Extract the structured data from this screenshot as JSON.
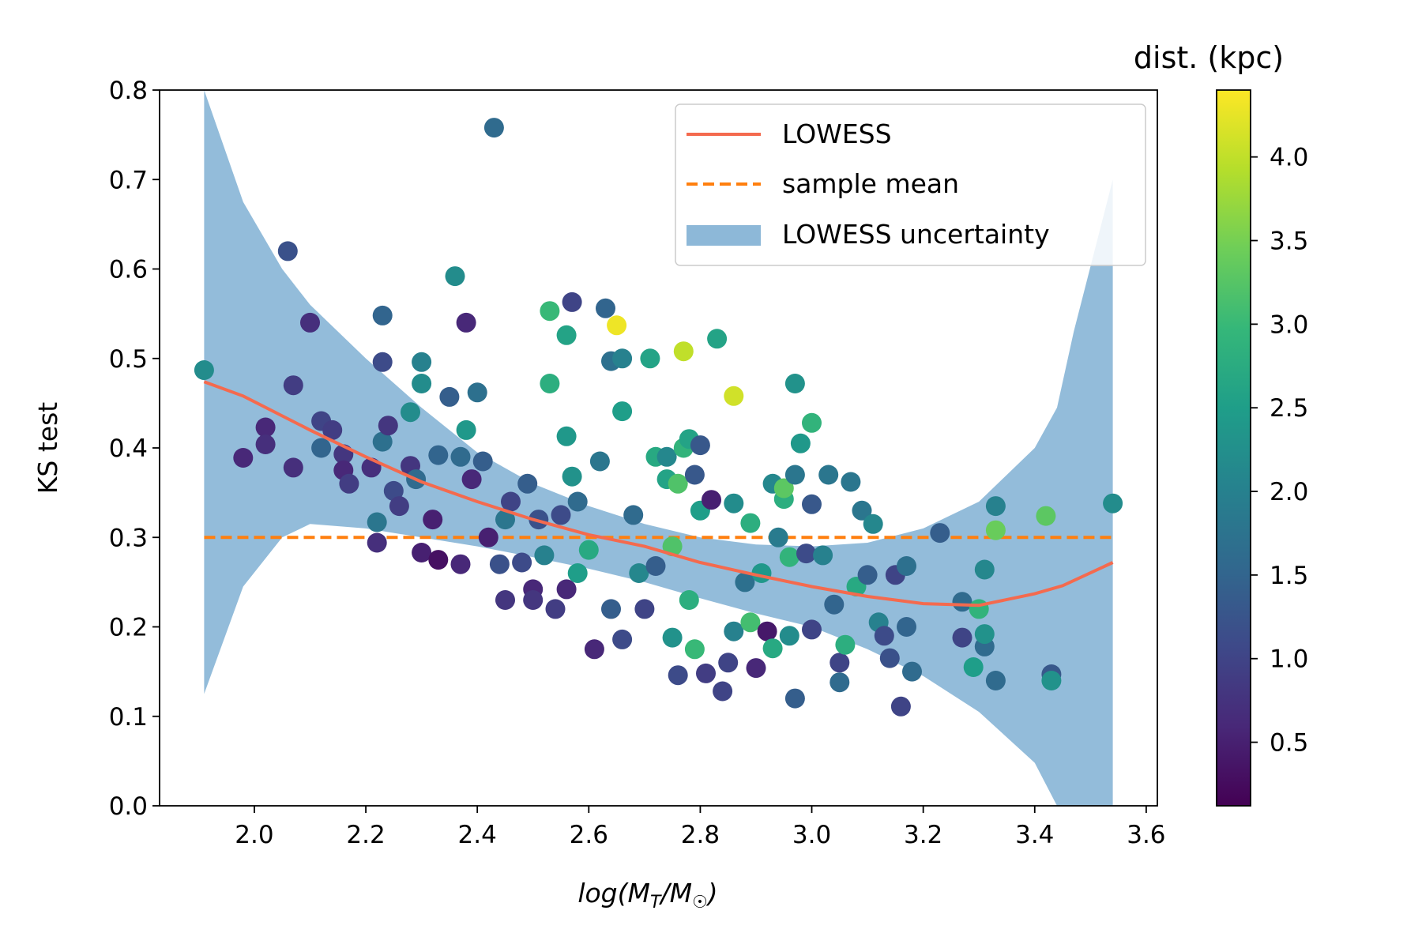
{
  "chart_data": {
    "type": "scatter",
    "title": "",
    "xlabel": "log(M_T/M_☉)",
    "xlabel_parts": {
      "base": "log(",
      "m1": "M",
      "sub1": "T",
      "slash": "/",
      "m2": "M",
      "sub2": "☉",
      "close": ")"
    },
    "ylabel": "KS test",
    "xlim": [
      1.83,
      3.62
    ],
    "ylim": [
      0.0,
      0.8
    ],
    "xticks": [
      2.0,
      2.2,
      2.4,
      2.6,
      2.8,
      3.0,
      3.2,
      3.4,
      3.6
    ],
    "xtick_labels": [
      "2.0",
      "2.2",
      "2.4",
      "2.6",
      "2.8",
      "3.0",
      "3.2",
      "3.4",
      "3.6"
    ],
    "yticks": [
      0.0,
      0.1,
      0.2,
      0.3,
      0.4,
      0.5,
      0.6,
      0.7,
      0.8
    ],
    "ytick_labels": [
      "0.0",
      "0.1",
      "0.2",
      "0.3",
      "0.4",
      "0.5",
      "0.6",
      "0.7",
      "0.8"
    ],
    "colorbar": {
      "label": "dist. (kpc)",
      "range": [
        0.12,
        4.4
      ],
      "ticks": [
        0.5,
        1.0,
        1.5,
        2.0,
        2.5,
        3.0,
        3.5,
        4.0
      ],
      "tick_labels": [
        "0.5",
        "1.0",
        "1.5",
        "2.0",
        "2.5",
        "3.0",
        "3.5",
        "4.0"
      ],
      "colormap": "viridis",
      "stops": [
        "#440154",
        "#482878",
        "#3e4989",
        "#31688e",
        "#26828e",
        "#1f9e89",
        "#35b779",
        "#6ece58",
        "#b5de2b",
        "#fde725"
      ]
    },
    "legend": {
      "position": "top-right",
      "items": [
        {
          "label": "LOWESS",
          "kind": "line",
          "color": "#f46a4e"
        },
        {
          "label": "sample mean",
          "kind": "dashed",
          "color": "#ff7f0e"
        },
        {
          "label": "LOWESS uncertainty",
          "kind": "patch",
          "color": "#8db8d8"
        }
      ]
    },
    "sample_mean": {
      "value": 0.3,
      "x_range": [
        1.91,
        3.54
      ],
      "color": "#ff7f0e"
    },
    "lowess": {
      "color": "#f46a4e",
      "x": [
        1.91,
        1.98,
        2.1,
        2.2,
        2.3,
        2.4,
        2.5,
        2.6,
        2.7,
        2.8,
        2.9,
        3.0,
        3.1,
        3.2,
        3.3,
        3.4,
        3.45,
        3.54
      ],
      "y": [
        0.474,
        0.458,
        0.42,
        0.39,
        0.362,
        0.34,
        0.32,
        0.303,
        0.29,
        0.272,
        0.258,
        0.245,
        0.234,
        0.226,
        0.224,
        0.237,
        0.246,
        0.272
      ]
    },
    "uncertainty_band": {
      "color": "#8db8d8",
      "x": [
        1.91,
        1.98,
        2.05,
        2.1,
        2.2,
        2.3,
        2.4,
        2.5,
        2.6,
        2.7,
        2.8,
        2.9,
        3.0,
        3.1,
        3.2,
        3.3,
        3.4,
        3.44,
        3.47,
        3.54
      ],
      "upper": [
        0.8,
        0.675,
        0.6,
        0.56,
        0.5,
        0.445,
        0.395,
        0.36,
        0.335,
        0.315,
        0.3,
        0.292,
        0.29,
        0.294,
        0.31,
        0.34,
        0.4,
        0.445,
        0.53,
        0.7
      ],
      "lower": [
        0.125,
        0.245,
        0.3,
        0.315,
        0.31,
        0.3,
        0.29,
        0.278,
        0.265,
        0.25,
        0.232,
        0.215,
        0.2,
        0.175,
        0.145,
        0.105,
        0.048,
        0.0,
        0.0,
        0.0
      ]
    },
    "points": [
      [
        1.91,
        0.487,
        2.2
      ],
      [
        1.98,
        0.389,
        0.6
      ],
      [
        2.02,
        0.423,
        0.6
      ],
      [
        2.02,
        0.404,
        0.7
      ],
      [
        2.06,
        0.62,
        1.2
      ],
      [
        2.07,
        0.47,
        0.9
      ],
      [
        2.07,
        0.378,
        0.7
      ],
      [
        2.1,
        0.54,
        0.7
      ],
      [
        2.12,
        0.43,
        1.0
      ],
      [
        2.12,
        0.4,
        1.5
      ],
      [
        2.14,
        0.42,
        0.9
      ],
      [
        2.16,
        0.393,
        0.8
      ],
      [
        2.16,
        0.375,
        0.6
      ],
      [
        2.17,
        0.36,
        0.9
      ],
      [
        2.21,
        0.378,
        0.7
      ],
      [
        2.22,
        0.317,
        1.8
      ],
      [
        2.22,
        0.294,
        0.7
      ],
      [
        2.23,
        0.548,
        1.5
      ],
      [
        2.23,
        0.496,
        1.1
      ],
      [
        2.23,
        0.407,
        1.7
      ],
      [
        2.24,
        0.425,
        0.8
      ],
      [
        2.25,
        0.352,
        1.1
      ],
      [
        2.26,
        0.335,
        0.9
      ],
      [
        2.28,
        0.44,
        2.2
      ],
      [
        2.28,
        0.38,
        0.8
      ],
      [
        2.29,
        0.365,
        1.6
      ],
      [
        2.3,
        0.472,
        2.2
      ],
      [
        2.3,
        0.496,
        2.0
      ],
      [
        2.3,
        0.283,
        0.5
      ],
      [
        2.32,
        0.32,
        0.5
      ],
      [
        2.33,
        0.275,
        0.3
      ],
      [
        2.33,
        0.392,
        1.5
      ],
      [
        2.35,
        0.457,
        1.4
      ],
      [
        2.36,
        0.592,
        2.2
      ],
      [
        2.37,
        0.39,
        1.6
      ],
      [
        2.37,
        0.27,
        0.6
      ],
      [
        2.38,
        0.42,
        2.4
      ],
      [
        2.38,
        0.54,
        0.6
      ],
      [
        2.39,
        0.365,
        0.6
      ],
      [
        2.4,
        0.462,
        1.7
      ],
      [
        2.41,
        0.385,
        1.4
      ],
      [
        2.42,
        0.3,
        0.5
      ],
      [
        2.43,
        0.758,
        1.6
      ],
      [
        2.44,
        0.27,
        1.2
      ],
      [
        2.45,
        0.23,
        0.8
      ],
      [
        2.45,
        0.32,
        1.8
      ],
      [
        2.46,
        0.34,
        1.0
      ],
      [
        2.48,
        0.272,
        1.1
      ],
      [
        2.49,
        0.36,
        1.4
      ],
      [
        2.5,
        0.242,
        0.6
      ],
      [
        2.5,
        0.23,
        0.8
      ],
      [
        2.51,
        0.32,
        1.2
      ],
      [
        2.52,
        0.28,
        2.0
      ],
      [
        2.53,
        0.472,
        2.8
      ],
      [
        2.53,
        0.553,
        3.0
      ],
      [
        2.54,
        0.22,
        0.9
      ],
      [
        2.55,
        0.325,
        1.1
      ],
      [
        2.56,
        0.413,
        2.4
      ],
      [
        2.56,
        0.526,
        2.6
      ],
      [
        2.56,
        0.242,
        0.6
      ],
      [
        2.57,
        0.563,
        1.0
      ],
      [
        2.57,
        0.368,
        2.3
      ],
      [
        2.58,
        0.26,
        2.5
      ],
      [
        2.58,
        0.34,
        1.6
      ],
      [
        2.6,
        0.286,
        2.7
      ],
      [
        2.61,
        0.175,
        0.6
      ],
      [
        2.62,
        0.385,
        1.8
      ],
      [
        2.63,
        0.556,
        1.5
      ],
      [
        2.64,
        0.22,
        1.4
      ],
      [
        2.64,
        0.497,
        1.7
      ],
      [
        2.65,
        0.537,
        4.3
      ],
      [
        2.66,
        0.5,
        2.0
      ],
      [
        2.66,
        0.441,
        2.5
      ],
      [
        2.66,
        0.186,
        1.1
      ],
      [
        2.68,
        0.325,
        1.6
      ],
      [
        2.69,
        0.26,
        2.1
      ],
      [
        2.7,
        0.22,
        1.0
      ],
      [
        2.71,
        0.5,
        2.6
      ],
      [
        2.72,
        0.39,
        2.7
      ],
      [
        2.72,
        0.268,
        1.4
      ],
      [
        2.74,
        0.39,
        2.1
      ],
      [
        2.74,
        0.365,
        2.6
      ],
      [
        2.75,
        0.188,
        2.3
      ],
      [
        2.75,
        0.29,
        3.2
      ],
      [
        2.76,
        0.36,
        3.2
      ],
      [
        2.76,
        0.146,
        1.1
      ],
      [
        2.77,
        0.508,
        4.0
      ],
      [
        2.77,
        0.4,
        2.9
      ],
      [
        2.78,
        0.41,
        2.6
      ],
      [
        2.78,
        0.23,
        2.8
      ],
      [
        2.79,
        0.175,
        3.0
      ],
      [
        2.79,
        0.37,
        1.3
      ],
      [
        2.8,
        0.403,
        1.3
      ],
      [
        2.8,
        0.33,
        2.5
      ],
      [
        2.81,
        0.148,
        0.9
      ],
      [
        2.82,
        0.342,
        0.5
      ],
      [
        2.83,
        0.522,
        2.6
      ],
      [
        2.84,
        0.128,
        1.0
      ],
      [
        2.85,
        0.16,
        1.0
      ],
      [
        2.86,
        0.458,
        4.1
      ],
      [
        2.86,
        0.338,
        2.2
      ],
      [
        2.86,
        0.195,
        2.0
      ],
      [
        2.88,
        0.25,
        1.7
      ],
      [
        2.89,
        0.205,
        3.1
      ],
      [
        2.89,
        0.316,
        2.8
      ],
      [
        2.9,
        0.154,
        0.6
      ],
      [
        2.91,
        0.26,
        2.4
      ],
      [
        2.92,
        0.195,
        0.4
      ],
      [
        2.93,
        0.36,
        2.1
      ],
      [
        2.93,
        0.176,
        2.7
      ],
      [
        2.94,
        0.3,
        1.9
      ],
      [
        2.95,
        0.343,
        2.8
      ],
      [
        2.95,
        0.355,
        3.3
      ],
      [
        2.96,
        0.19,
        2.2
      ],
      [
        2.96,
        0.278,
        2.9
      ],
      [
        2.97,
        0.472,
        2.3
      ],
      [
        2.97,
        0.37,
        1.8
      ],
      [
        2.97,
        0.12,
        1.4
      ],
      [
        2.98,
        0.405,
        2.4
      ],
      [
        2.99,
        0.282,
        1.1
      ],
      [
        3.0,
        0.428,
        2.9
      ],
      [
        3.0,
        0.197,
        1.0
      ],
      [
        3.0,
        0.337,
        1.3
      ],
      [
        3.02,
        0.28,
        2.0
      ],
      [
        3.03,
        0.37,
        1.8
      ],
      [
        3.04,
        0.225,
        1.5
      ],
      [
        3.05,
        0.16,
        1.0
      ],
      [
        3.05,
        0.138,
        1.6
      ],
      [
        3.06,
        0.18,
        2.8
      ],
      [
        3.07,
        0.362,
        1.8
      ],
      [
        3.08,
        0.245,
        2.7
      ],
      [
        3.09,
        0.33,
        1.8
      ],
      [
        3.1,
        0.258,
        1.4
      ],
      [
        3.11,
        0.315,
        2.1
      ],
      [
        3.12,
        0.205,
        2.0
      ],
      [
        3.13,
        0.19,
        1.1
      ],
      [
        3.14,
        0.165,
        1.2
      ],
      [
        3.15,
        0.258,
        1.0
      ],
      [
        3.16,
        0.111,
        1.0
      ],
      [
        3.17,
        0.2,
        1.5
      ],
      [
        3.17,
        0.268,
        1.7
      ],
      [
        3.18,
        0.15,
        1.6
      ],
      [
        3.23,
        0.305,
        1.4
      ],
      [
        3.27,
        0.228,
        1.6
      ],
      [
        3.27,
        0.188,
        1.0
      ],
      [
        3.29,
        0.155,
        2.5
      ],
      [
        3.3,
        0.22,
        2.9
      ],
      [
        3.31,
        0.178,
        1.6
      ],
      [
        3.31,
        0.192,
        2.3
      ],
      [
        3.31,
        0.264,
        2.1
      ],
      [
        3.33,
        0.335,
        2.0
      ],
      [
        3.33,
        0.308,
        3.4
      ],
      [
        3.33,
        0.14,
        1.6
      ],
      [
        3.42,
        0.324,
        3.3
      ],
      [
        3.43,
        0.147,
        1.3
      ],
      [
        3.43,
        0.14,
        2.3
      ],
      [
        3.54,
        0.338,
        2.2
      ]
    ]
  }
}
